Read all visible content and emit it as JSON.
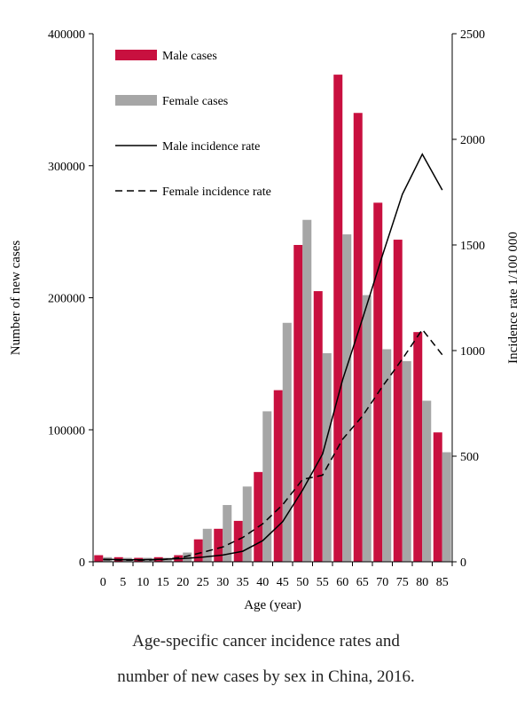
{
  "chart_data": {
    "type": "bar",
    "categories": [
      "0",
      "5",
      "10",
      "15",
      "20",
      "25",
      "30",
      "35",
      "40",
      "45",
      "50",
      "55",
      "60",
      "65",
      "70",
      "75",
      "80",
      "85"
    ],
    "xlabel": "Age (year)",
    "ylabel": "Number of new cases",
    "y2label": "Incidence rate 1/100 000",
    "ylim": [
      0,
      400000
    ],
    "y2lim": [
      0,
      2500
    ],
    "yticks": [
      "0",
      "100000",
      "200000",
      "300000",
      "400000"
    ],
    "y2ticks": [
      "0",
      "500",
      "1000",
      "1500",
      "2000",
      "2500"
    ],
    "series": [
      {
        "name": "Male cases",
        "kind": "bar",
        "axis": "left",
        "color": "#c8103f",
        "values": [
          5000,
          3500,
          3000,
          3500,
          5000,
          17000,
          25000,
          31000,
          68000,
          130000,
          240000,
          205000,
          369000,
          340000,
          272000,
          244000,
          174000,
          98000
        ]
      },
      {
        "name": "Female cases",
        "kind": "bar",
        "axis": "left",
        "color": "#a6a6a6",
        "values": [
          3500,
          3000,
          3000,
          3000,
          7000,
          25000,
          43000,
          57000,
          114000,
          181000,
          259000,
          158000,
          248000,
          202000,
          161000,
          152000,
          122000,
          83000
        ]
      },
      {
        "name": "Male incidence rate",
        "kind": "line",
        "axis": "right",
        "color": "#000000",
        "dash": "none",
        "values": [
          12,
          10,
          10,
          12,
          15,
          22,
          32,
          50,
          100,
          190,
          340,
          510,
          860,
          1150,
          1450,
          1740,
          1930,
          1760
        ]
      },
      {
        "name": "Female incidence rate",
        "kind": "line",
        "axis": "right",
        "color": "#000000",
        "dash": "dashed",
        "values": [
          10,
          8,
          8,
          10,
          22,
          45,
          70,
          115,
          180,
          270,
          390,
          410,
          580,
          690,
          830,
          960,
          1100,
          980
        ]
      }
    ],
    "legend_position": "top-left",
    "grid": false
  },
  "caption": {
    "line1": "Age-specific  cancer incidence rates  and",
    "line2": "number of new cases by sex in China, 2016."
  }
}
